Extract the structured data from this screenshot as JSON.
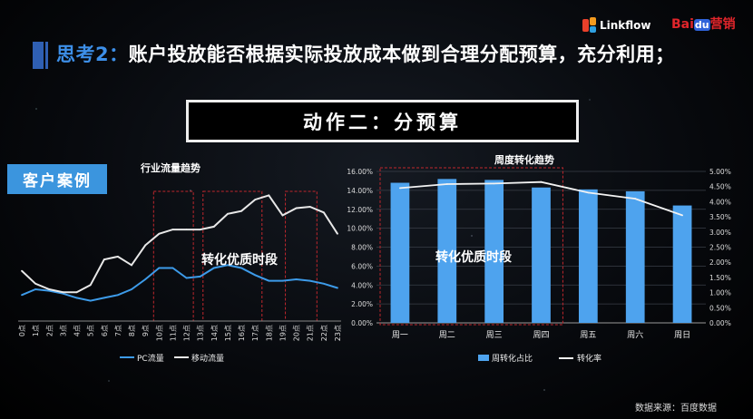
{
  "header": {
    "title_prefix": "思考2：",
    "title_main": "账户投放能否根据实际投放成本做到合理分配预算，充分利用；",
    "logo_linkflow": "Linkflow",
    "logo_baidu_prefix": "Bai",
    "logo_baidu_du": "du",
    "logo_baidu_suffix": "营销"
  },
  "action_box": {
    "text": "动作二：分预算"
  },
  "case_label": "客户案例",
  "source": "数据来源：百度数据",
  "colors": {
    "pc": "#3d9be9",
    "mobile": "#e8e8e8",
    "bar": "#4ea3ee",
    "dash": "#c0272d",
    "title_accent": "#3d8fe8"
  },
  "chart_data": [
    {
      "type": "line",
      "title": "行业流量趋势",
      "categories": [
        "0点",
        "1点",
        "2点",
        "3点",
        "4点",
        "5点",
        "6点",
        "7点",
        "8点",
        "9点",
        "10点",
        "11点",
        "12点",
        "13点",
        "14点",
        "15点",
        "16点",
        "17点",
        "18点",
        "19点",
        "20点",
        "21点",
        "22点",
        "23点"
      ],
      "series": [
        {
          "name": "PC流量",
          "values": [
            17,
            21,
            20,
            18,
            15,
            13,
            15,
            17,
            21,
            28,
            36,
            36,
            29,
            30,
            36,
            38,
            36,
            31,
            27,
            27,
            28,
            27,
            25,
            22
          ]
        },
        {
          "name": "移动流量",
          "values": [
            34,
            25,
            21,
            19,
            19,
            24,
            42,
            44,
            38,
            52,
            60,
            63,
            63,
            63,
            65,
            74,
            76,
            84,
            87,
            73,
            78,
            79,
            75,
            60
          ]
        }
      ],
      "ylim": [
        0,
        100
      ],
      "grid": false,
      "legend": "bottom",
      "annotation": "转化优质时段"
    },
    {
      "type": "bar",
      "title": "周度转化趋势",
      "categories": [
        "周一",
        "周二",
        "周三",
        "周四",
        "周五",
        "周六",
        "周日"
      ],
      "series": [
        {
          "name": "周转化占比",
          "values": [
            14.8,
            15.2,
            15.1,
            14.3,
            14.1,
            13.9,
            12.4
          ],
          "axis": "left"
        },
        {
          "name": "转化率",
          "type": "line",
          "values": [
            4.45,
            4.58,
            4.6,
            4.65,
            4.3,
            4.1,
            3.55
          ],
          "axis": "right"
        }
      ],
      "ylim_left": [
        0,
        16
      ],
      "ylim_right": [
        0,
        5
      ],
      "yticks_left": [
        "0.00%",
        "2.00%",
        "4.00%",
        "6.00%",
        "8.00%",
        "10.00%",
        "12.00%",
        "14.00%",
        "16.00%"
      ],
      "yticks_right": [
        "0.00%",
        "0.50%",
        "1.00%",
        "1.50%",
        "2.00%",
        "2.50%",
        "3.00%",
        "3.50%",
        "4.00%",
        "4.50%",
        "5.00%"
      ],
      "grid": true,
      "legend": "bottom",
      "annotation": "转化优质时段"
    }
  ]
}
